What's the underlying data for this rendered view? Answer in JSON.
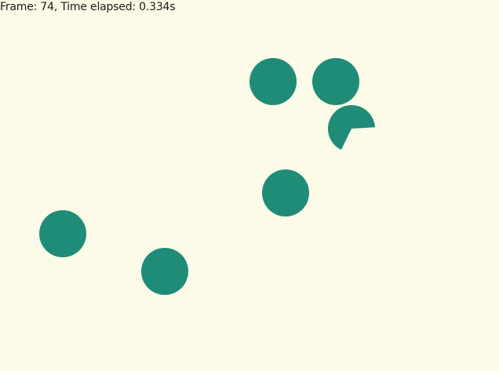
{
  "hud": {
    "frame_label": "Frame: ",
    "frame": 74,
    "time_label": ", Time elapsed: ",
    "time_elapsed": "0.334s"
  },
  "colors": {
    "background": "#fbfbe8",
    "circle_fill": "#1f8c78",
    "text": "#1a1a1a"
  },
  "objects": [
    {
      "name": "circle",
      "shape": "full-circle"
    },
    {
      "name": "circle",
      "shape": "full-circle"
    },
    {
      "name": "pacman",
      "shape": "partial-circle"
    },
    {
      "name": "circle",
      "shape": "full-circle"
    },
    {
      "name": "circle",
      "shape": "full-circle"
    },
    {
      "name": "circle",
      "shape": "full-circle"
    }
  ]
}
